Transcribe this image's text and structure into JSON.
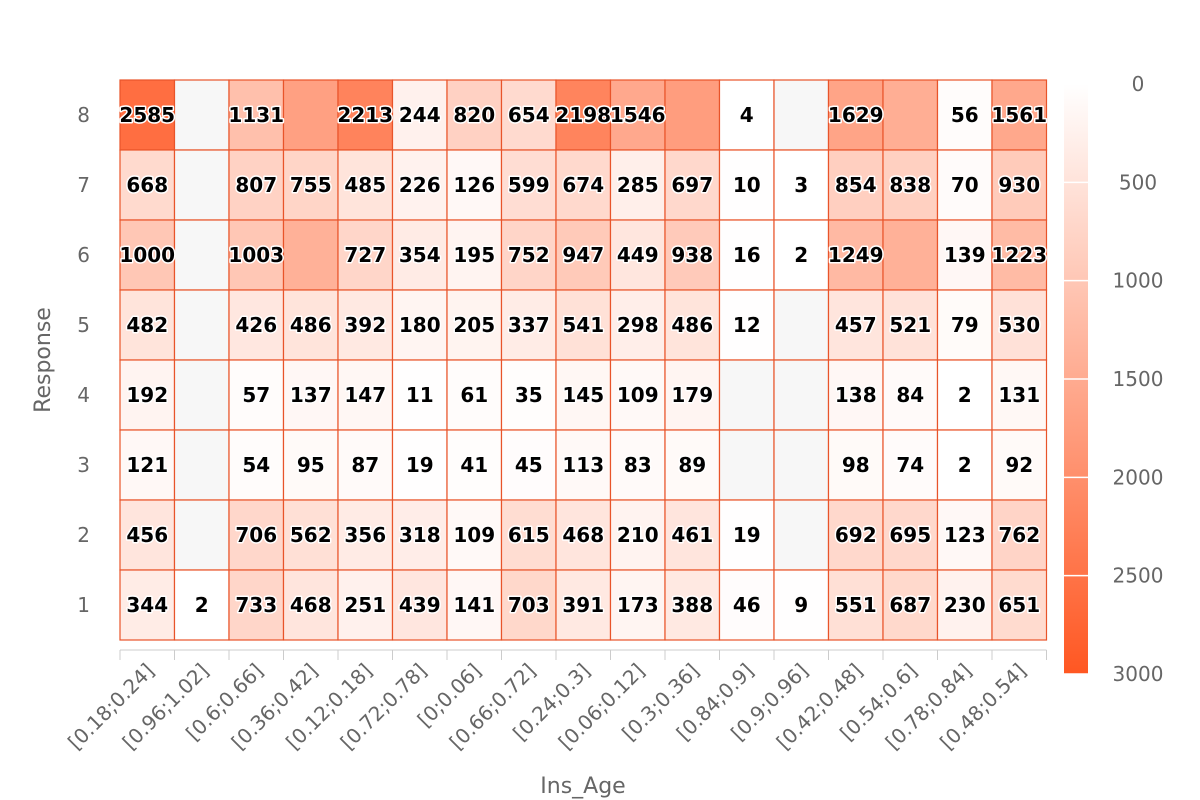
{
  "chart_data": {
    "type": "heatmap",
    "xlabel": "Ins_Age",
    "ylabel": "Response",
    "x_categories": [
      "[0.18;0.24]",
      "[0.96;1.02]",
      "[0.6;0.66]",
      "[0.36;0.42]",
      "[0.12;0.18]",
      "[0.72;0.78]",
      "[0;0.06]",
      "[0.66;0.72]",
      "[0.24;0.3]",
      "[0.06;0.12]",
      "[0.3;0.36]",
      "[0.84;0.9]",
      "[0.9;0.96]",
      "[0.42;0.48]",
      "[0.54;0.6]",
      "[0.78;0.84]",
      "[0.48;0.54]"
    ],
    "y_categories": [
      "8",
      "7",
      "6",
      "5",
      "4",
      "3",
      "2",
      "1"
    ],
    "cells": [
      [
        2585,
        null,
        1131,
        1700,
        2213,
        244,
        820,
        654,
        2198,
        1546,
        1750,
        4,
        null,
        1629,
        1450,
        56,
        1561
      ],
      [
        668,
        null,
        807,
        755,
        485,
        226,
        126,
        599,
        674,
        285,
        697,
        10,
        3,
        854,
        838,
        70,
        930
      ],
      [
        1000,
        null,
        1003,
        1400,
        727,
        354,
        195,
        752,
        947,
        449,
        938,
        16,
        2,
        1249,
        1400,
        139,
        1223
      ],
      [
        482,
        null,
        426,
        486,
        392,
        180,
        205,
        337,
        541,
        298,
        486,
        12,
        null,
        457,
        521,
        79,
        530
      ],
      [
        192,
        null,
        57,
        137,
        147,
        11,
        61,
        35,
        145,
        109,
        179,
        null,
        null,
        138,
        84,
        2,
        131
      ],
      [
        121,
        null,
        54,
        95,
        87,
        19,
        41,
        45,
        113,
        83,
        89,
        null,
        null,
        98,
        74,
        2,
        92
      ],
      [
        456,
        null,
        706,
        562,
        356,
        318,
        109,
        615,
        468,
        210,
        461,
        19,
        null,
        692,
        695,
        123,
        762
      ],
      [
        344,
        2,
        733,
        468,
        251,
        439,
        141,
        703,
        391,
        173,
        388,
        46,
        9,
        551,
        687,
        230,
        651
      ]
    ],
    "labels": [
      [
        "2585",
        "",
        "1131",
        "",
        "2213",
        "244",
        "820",
        "654",
        "2198",
        "1546",
        "",
        "4",
        "",
        "1629",
        "",
        "56",
        "1561"
      ],
      [
        "668",
        "",
        "807",
        "755",
        "485",
        "226",
        "126",
        "599",
        "674",
        "285",
        "697",
        "10",
        "3",
        "854",
        "838",
        "70",
        "930"
      ],
      [
        "1000",
        "",
        "1003",
        "",
        "727",
        "354",
        "195",
        "752",
        "947",
        "449",
        "938",
        "16",
        "2",
        "1249",
        "",
        "139",
        "1223"
      ],
      [
        "482",
        "",
        "426",
        "486",
        "392",
        "180",
        "205",
        "337",
        "541",
        "298",
        "486",
        "12",
        "",
        "457",
        "521",
        "79",
        "530"
      ],
      [
        "192",
        "",
        "57",
        "137",
        "147",
        "11",
        "61",
        "35",
        "145",
        "109",
        "179",
        "",
        "",
        "138",
        "84",
        "2",
        "131"
      ],
      [
        "121",
        "",
        "54",
        "95",
        "87",
        "19",
        "41",
        "45",
        "113",
        "83",
        "89",
        "",
        "",
        "98",
        "74",
        "2",
        "92"
      ],
      [
        "456",
        "",
        "706",
        "562",
        "356",
        "318",
        "109",
        "615",
        "468",
        "210",
        "461",
        "19",
        "",
        "692",
        "695",
        "123",
        "762"
      ],
      [
        "344",
        "2",
        "733",
        "468",
        "251",
        "439",
        "141",
        "703",
        "391",
        "173",
        "388",
        "46",
        "9",
        "551",
        "687",
        "230",
        "651"
      ]
    ],
    "color_scale": {
      "min": 0,
      "max": 3000,
      "min_color": "#ffffff",
      "max_color": "#ff5722",
      "null_color": "#f7f7f7",
      "cell_border_color": "#e8542a",
      "ticks": [
        "0",
        "500",
        "1000",
        "1500",
        "2000",
        "2500",
        "3000"
      ],
      "tick_values": [
        0,
        500,
        1000,
        1500,
        2000,
        2500,
        3000
      ],
      "placement": "right",
      "orientation": "vertical-top-to-bottom"
    },
    "grid": false
  }
}
